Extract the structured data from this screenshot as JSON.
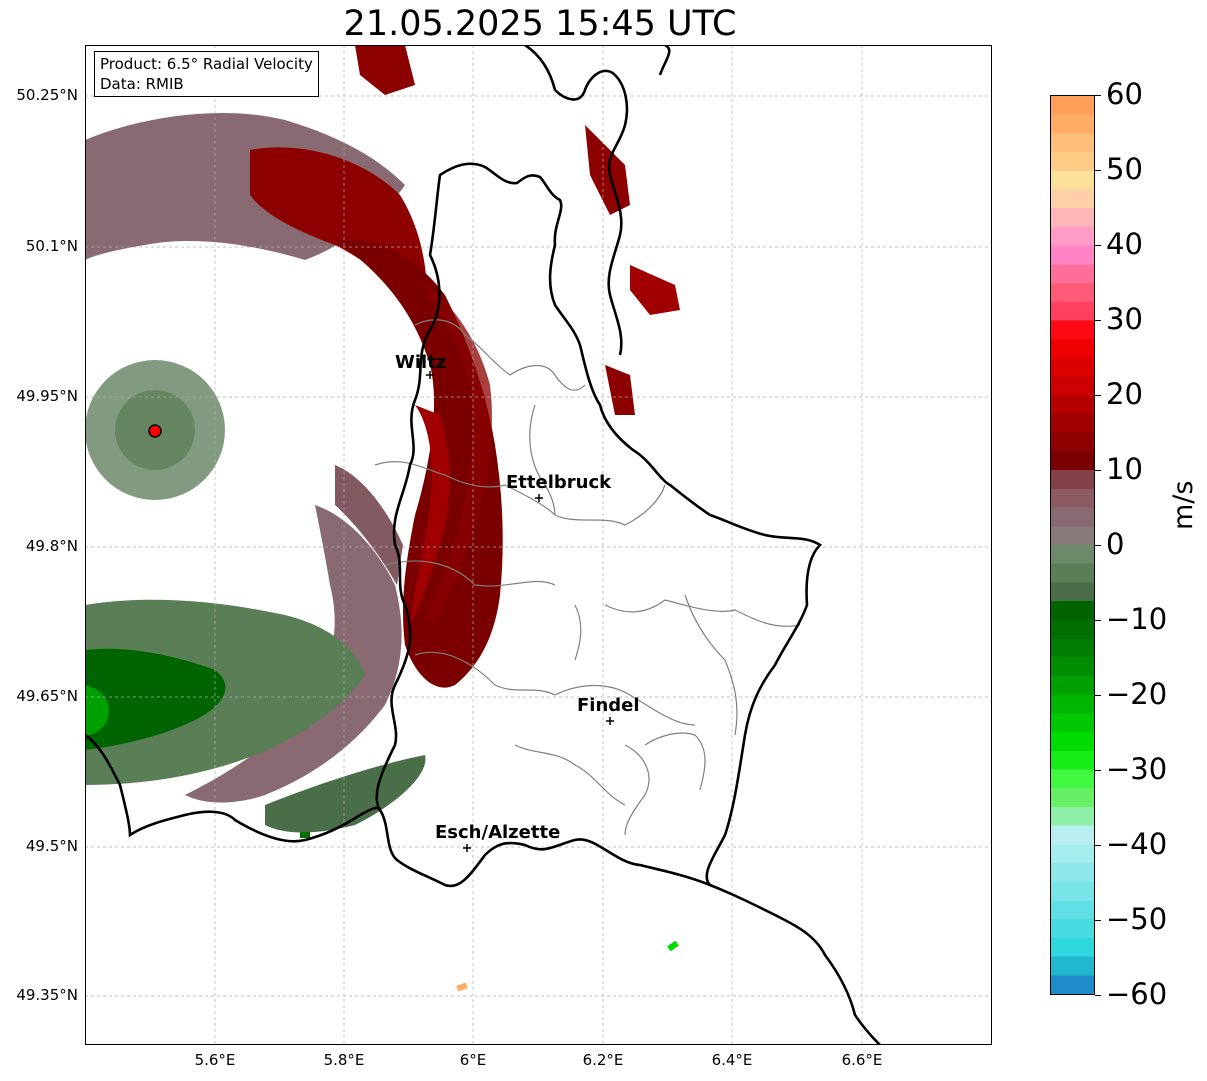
{
  "title": "21.05.2025 15:45 UTC",
  "info": {
    "product": "Product: 6.5° Radial Velocity",
    "data_source": "Data: RMIB"
  },
  "latitude_labels": [
    "50.25°N",
    "50.1°N",
    "49.95°N",
    "49.8°N",
    "49.65°N",
    "49.5°N",
    "49.35°N"
  ],
  "longitude_labels": [
    "5.6°E",
    "5.8°E",
    "6°E",
    "6.2°E",
    "6.4°E",
    "6.6°E"
  ],
  "cities": [
    {
      "name": "Wiltz",
      "lon": 5.93,
      "lat": 49.967
    },
    {
      "name": "Ettelbruck",
      "lon": 6.1,
      "lat": 49.847
    },
    {
      "name": "Findel",
      "lon": 6.21,
      "lat": 49.626
    },
    {
      "name": "Esch/Alzette",
      "lon": 5.98,
      "lat": 49.497
    }
  ],
  "radar_site": {
    "lon": 5.505,
    "lat": 49.914
  },
  "colorbar": {
    "unit": "m/s",
    "min": -60,
    "max": 60,
    "ticks": [
      "60",
      "50",
      "40",
      "30",
      "20",
      "10",
      "0",
      "−10",
      "−20",
      "−30",
      "−40",
      "−50",
      "−60"
    ],
    "colors_top_to_bottom": [
      "#ff9f5a",
      "#ffad66",
      "#ffbf7a",
      "#ffcc88",
      "#ffe099",
      "#ffd0a8",
      "#ffb6b8",
      "#ff9cc8",
      "#ff85c6",
      "#ff6f9a",
      "#ff5a78",
      "#ff4060",
      "#ff0a14",
      "#ee0000",
      "#dd0000",
      "#cc0000",
      "#b50000",
      "#a00000",
      "#8c0000",
      "#780000",
      "#824048",
      "#8c5a62",
      "#8a6a72",
      "#867a7a",
      "#6c8a6a",
      "#5a7e56",
      "#4a6e48",
      "#006400",
      "#006e00",
      "#007c00",
      "#008e00",
      "#00a000",
      "#00b400",
      "#00c800",
      "#00dc00",
      "#14ee14",
      "#40f840",
      "#66f066",
      "#90f0a8",
      "#b8eef0",
      "#a4ecee",
      "#8ee8ea",
      "#78e4e8",
      "#60e0e4",
      "#48dce0",
      "#2ed8dc",
      "#20b8d0",
      "#1e8cc8"
    ],
    "colormap_colors": {
      "positive": "#a00000",
      "zero": "#867a7a",
      "negative": "#006e00",
      "approaching_fast": "#1e8cc8",
      "receding_fast": "#ff9f5a"
    }
  }
}
